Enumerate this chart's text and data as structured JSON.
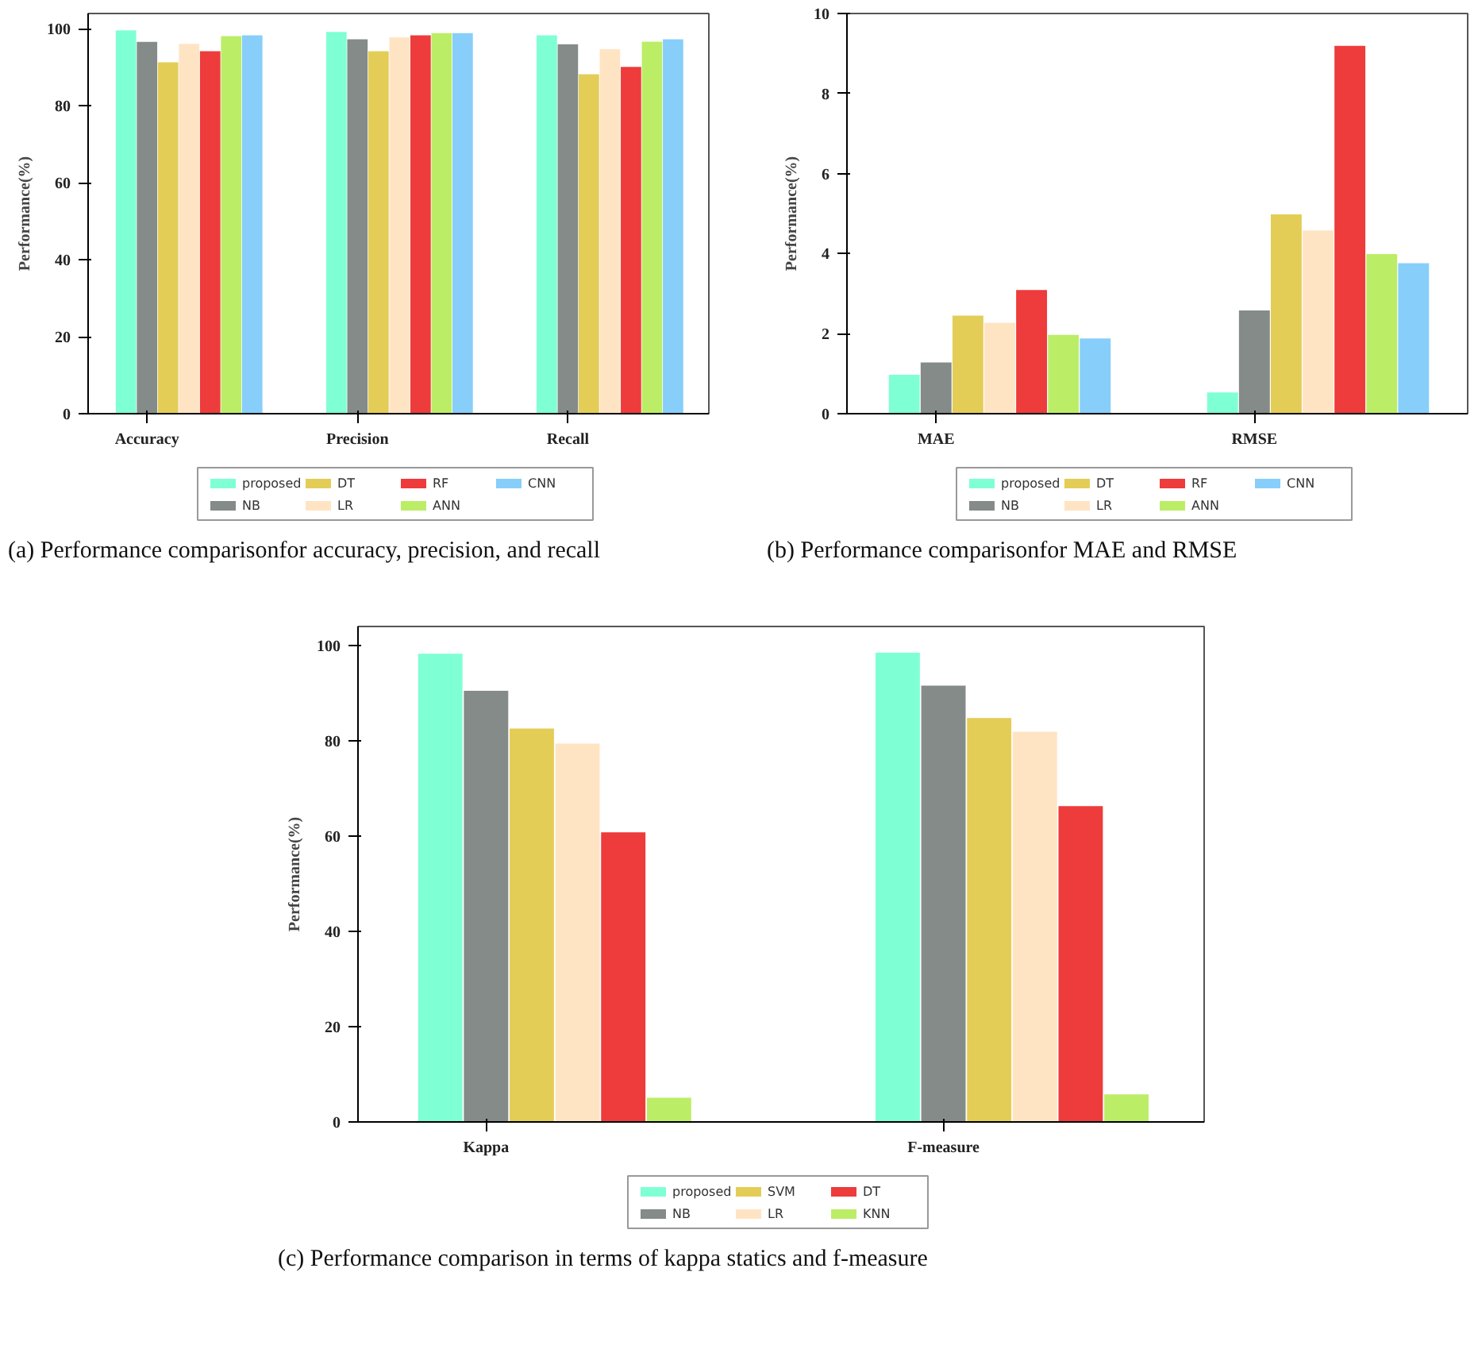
{
  "chart_data": [
    {
      "type": "bar",
      "categories": [
        "Accuracy",
        "Precision",
        "Recall"
      ],
      "ylabel": "Performance(%)",
      "ylim": [
        0,
        104
      ],
      "yticks": [
        0,
        20,
        40,
        60,
        80,
        100
      ],
      "grid": false,
      "legend": "bottom",
      "annotations": [
        "(a)  Performance comparisonfor accuracy, precision, and recall"
      ],
      "series": [
        {
          "name": "proposed",
          "color": "#7fffd4",
          "values": [
            99.6,
            99.2,
            98.3
          ]
        },
        {
          "name": "NB",
          "color": "#848b88",
          "values": [
            96.6,
            97.3,
            96.0
          ]
        },
        {
          "name": "DT",
          "color": "#e3cd57",
          "values": [
            91.3,
            94.2,
            88.2
          ]
        },
        {
          "name": "LR",
          "color": "#ffe4c4",
          "values": [
            96.1,
            97.8,
            94.7
          ]
        },
        {
          "name": "RF",
          "color": "#ee3b3b",
          "values": [
            94.2,
            98.3,
            90.1
          ]
        },
        {
          "name": "ANN",
          "color": "#bced67",
          "values": [
            98.1,
            98.9,
            96.7
          ]
        },
        {
          "name": "CNN",
          "color": "#87cefa",
          "values": [
            98.3,
            98.9,
            97.3
          ]
        }
      ]
    },
    {
      "type": "bar",
      "categories": [
        "MAE",
        "RMSE"
      ],
      "ylabel": "Performance(%)",
      "ylim": [
        0,
        10
      ],
      "yticks": [
        0,
        2,
        4,
        6,
        8,
        10
      ],
      "grid": false,
      "legend": "bottom",
      "annotations": [
        "(b)  Performance comparisonfor MAE and RMSE"
      ],
      "series": [
        {
          "name": "proposed",
          "color": "#7fffd4",
          "values": [
            0.97,
            0.53
          ]
        },
        {
          "name": "NB",
          "color": "#848b88",
          "values": [
            1.28,
            2.58
          ]
        },
        {
          "name": "DT",
          "color": "#e3cd57",
          "values": [
            2.45,
            4.98
          ]
        },
        {
          "name": "LR",
          "color": "#ffe4c4",
          "values": [
            2.27,
            4.58
          ]
        },
        {
          "name": "RF",
          "color": "#ee3b3b",
          "values": [
            3.09,
            9.19
          ]
        },
        {
          "name": "ANN",
          "color": "#bced67",
          "values": [
            1.97,
            3.99
          ]
        },
        {
          "name": "CNN",
          "color": "#87cefa",
          "values": [
            1.88,
            3.76
          ]
        }
      ]
    },
    {
      "type": "bar",
      "categories": [
        "Kappa",
        "F-measure"
      ],
      "ylabel": "Performance(%)",
      "ylim": [
        0,
        104
      ],
      "yticks": [
        0,
        20,
        40,
        60,
        80,
        100
      ],
      "grid": false,
      "legend": "bottom",
      "annotations": [
        "(c) Performance comparison in terms of kappa statics and f-measure"
      ],
      "series": [
        {
          "name": "proposed",
          "color": "#7fffd4",
          "values": [
            98.3,
            98.5
          ]
        },
        {
          "name": "NB",
          "color": "#848b88",
          "values": [
            90.5,
            91.6
          ]
        },
        {
          "name": "SVM",
          "color": "#e3cd57",
          "values": [
            82.6,
            84.8
          ]
        },
        {
          "name": "LR",
          "color": "#ffe4c4",
          "values": [
            79.4,
            81.9
          ]
        },
        {
          "name": "DT",
          "color": "#ee3b3b",
          "values": [
            60.8,
            66.3
          ]
        },
        {
          "name": "KNN",
          "color": "#bced67",
          "values": [
            5.1,
            5.8
          ]
        }
      ]
    }
  ]
}
